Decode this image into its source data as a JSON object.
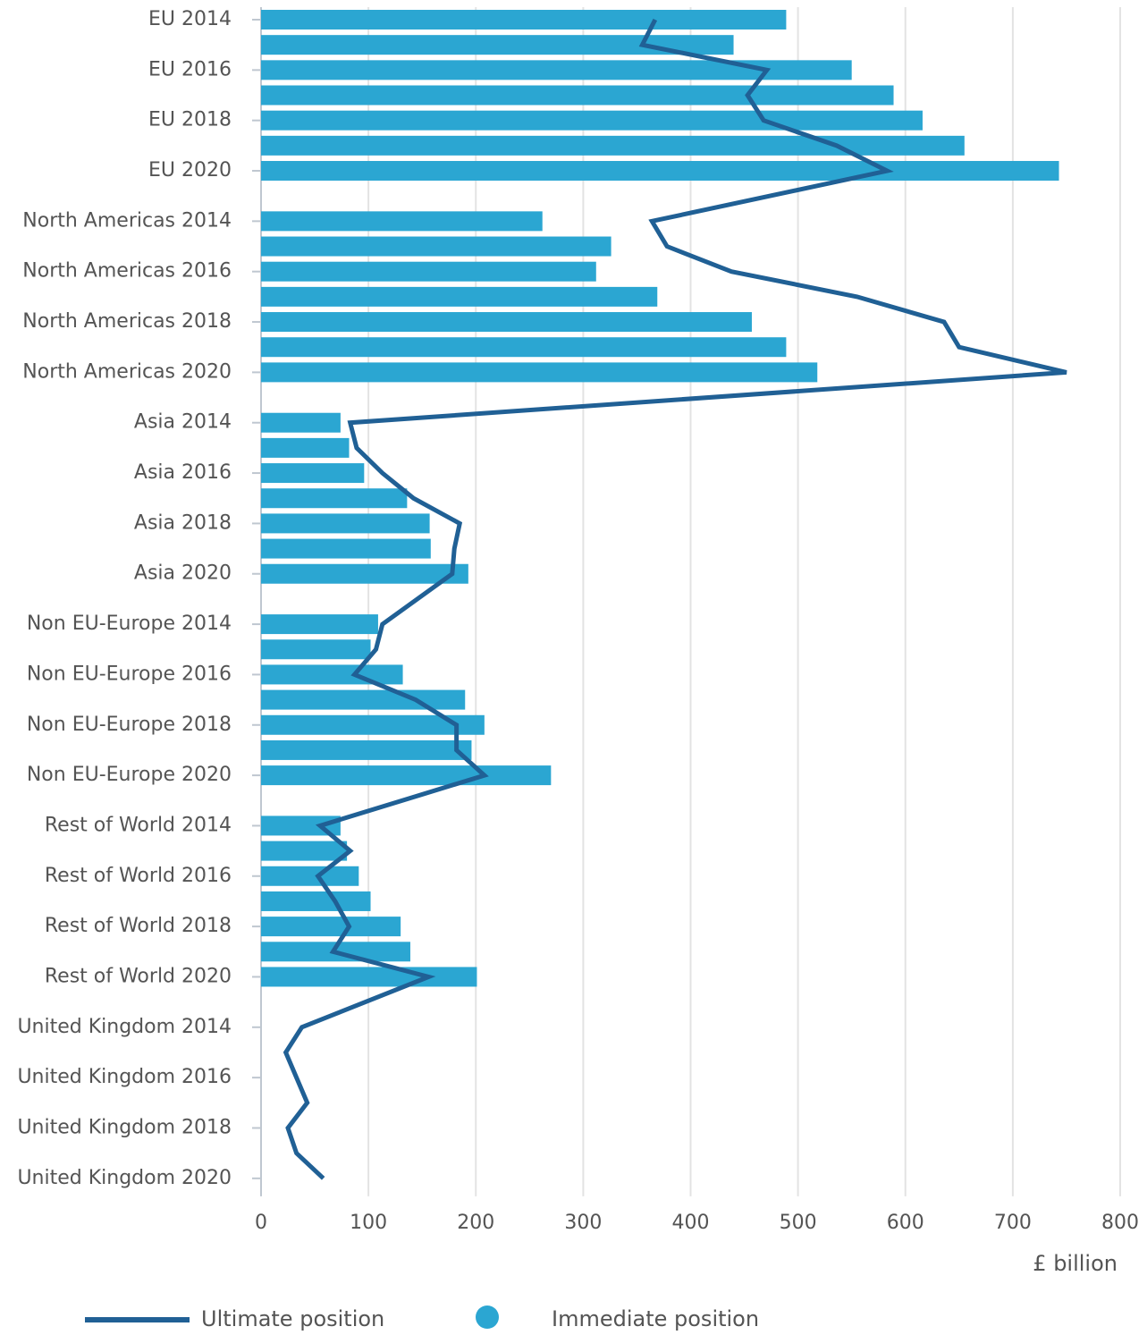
{
  "chart_data": {
    "type": "bar",
    "categories": [
      "EU 2014",
      null,
      "EU 2016",
      null,
      "EU 2018",
      null,
      "EU 2020",
      "North Americas 2014",
      null,
      "North Americas 2016",
      null,
      "North Americas 2018",
      null,
      "North Americas 2020",
      "Asia 2014",
      null,
      "Asia 2016",
      null,
      "Asia 2018",
      null,
      "Asia 2020",
      "Non EU-Europe 2014",
      null,
      "Non EU-Europe 2016",
      null,
      "Non EU-Europe 2018",
      null,
      "Non EU-Europe 2020",
      "Rest of World 2014",
      null,
      "Rest of World 2016",
      null,
      "Rest of World 2018",
      null,
      "Rest of World 2020",
      "United Kingdom 2014",
      null,
      "United Kingdom 2016",
      null,
      "United Kingdom 2018",
      null,
      "United Kingdom 2020"
    ],
    "series": [
      {
        "name": "Ultimate position",
        "type": "line",
        "color": "#206095",
        "values": [
          367,
          355,
          471,
          453,
          468,
          536,
          583,
          364,
          378,
          438,
          555,
          636,
          650,
          750,
          83,
          89,
          113,
          142,
          185,
          180,
          178,
          113,
          107,
          87,
          144,
          182,
          182,
          208,
          55,
          83,
          53,
          69,
          82,
          67,
          156,
          38,
          23,
          33,
          43,
          25,
          33,
          58
        ]
      },
      {
        "name": "Immediate position",
        "type": "bar",
        "color": "#2ba6d2",
        "values": [
          489,
          440,
          550,
          589,
          616,
          655,
          743,
          262,
          326,
          312,
          369,
          457,
          489,
          518,
          74,
          82,
          96,
          136,
          157,
          158,
          193,
          109,
          102,
          132,
          190,
          208,
          196,
          270,
          74,
          80,
          91,
          102,
          130,
          139,
          201,
          null,
          null,
          null,
          null,
          null,
          null,
          null
        ]
      }
    ],
    "x_label": "£ billion",
    "xlim": [
      0,
      800
    ],
    "xticks": [
      0,
      100,
      200,
      300,
      400,
      500,
      600,
      700,
      800
    ],
    "grid": true,
    "legend": "bottom"
  }
}
